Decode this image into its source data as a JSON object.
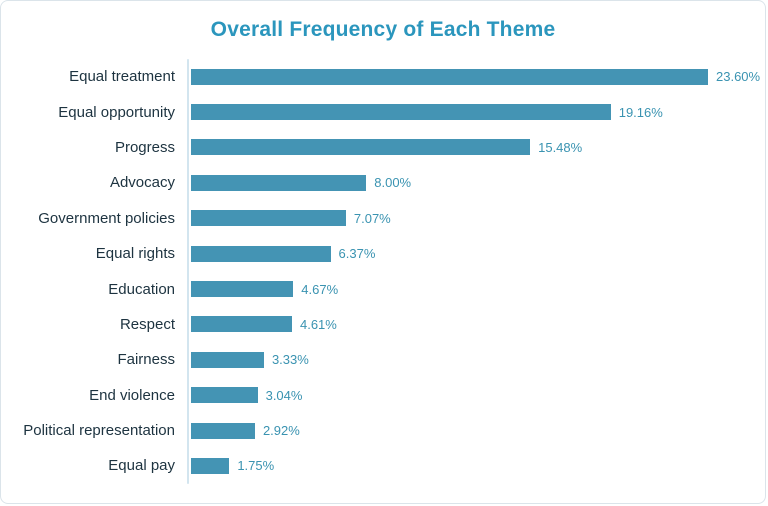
{
  "card": {
    "background": "#ffffff",
    "border_color": "#dbe4ea"
  },
  "chart_data": {
    "type": "bar",
    "orientation": "horizontal",
    "title": "Overall Frequency of Each Theme",
    "categories": [
      "Equal treatment",
      "Equal opportunity",
      "Progress",
      "Advocacy",
      "Government policies",
      "Equal rights",
      "Education",
      "Respect",
      "Fairness",
      "End violence",
      "Political representation",
      "Equal pay"
    ],
    "values": [
      23.6,
      19.16,
      15.48,
      8.0,
      7.07,
      6.37,
      4.67,
      4.61,
      3.33,
      3.04,
      2.92,
      1.75
    ],
    "value_labels": [
      "23.60%",
      "19.16%",
      "15.48%",
      "8.00%",
      "7.07%",
      "6.37%",
      "4.67%",
      "4.61%",
      "3.33%",
      "3.04%",
      "2.92%",
      "1.75%"
    ],
    "xlabel": "",
    "ylabel": "",
    "xlim": [
      0,
      24
    ],
    "grid": false,
    "legend": null,
    "colors": {
      "bar": "#4494b4",
      "title": "#2b96bd",
      "category_label": "#1d3340",
      "value_label": "#3a93b1",
      "axis_line": "#d3e5ef"
    }
  }
}
